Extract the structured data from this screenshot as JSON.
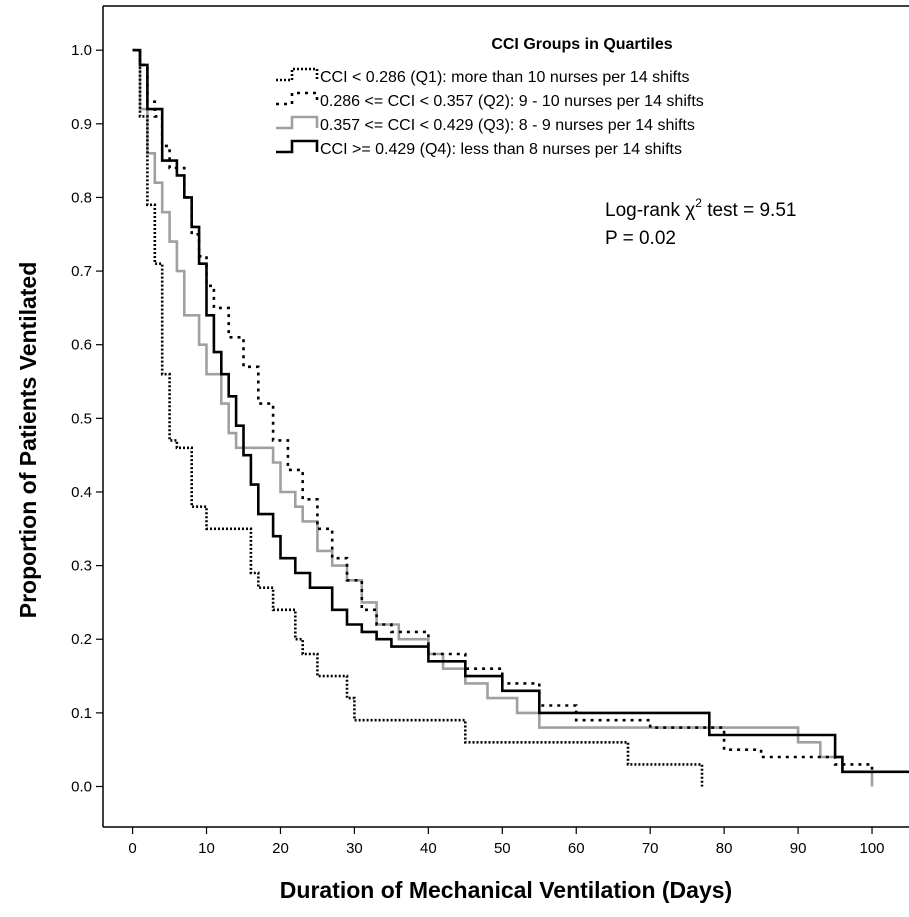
{
  "chart_data": {
    "type": "line",
    "step": true,
    "xlabel": "Duration of Mechanical Ventilation (Days)",
    "ylabel": "Proportion of Patients Ventilated",
    "xlim": [
      -4,
      105
    ],
    "ylim": [
      -0.055,
      1.06
    ],
    "xticks": [
      "0",
      "10",
      "20",
      "30",
      "40",
      "50",
      "60",
      "70",
      "80",
      "90",
      "100"
    ],
    "yticks": [
      "0.0",
      "0.1",
      "0.2",
      "0.3",
      "0.4",
      "0.5",
      "0.6",
      "0.7",
      "0.8",
      "0.9",
      "1.0"
    ],
    "grid": false,
    "legend": {
      "title": "CCI Groups in Quartiles",
      "position": "top-right"
    },
    "annotation": {
      "line1_prefix": "Log-rank χ",
      "line1_sup": "2",
      "line1_suffix": " test = 9.51",
      "line2": "P = 0.02"
    },
    "series": [
      {
        "name": "CCI < 0.286 (Q1): more than 10 nurses per 14 shifts",
        "color": "#000000",
        "dash": "dotted",
        "x": [
          0,
          1,
          2,
          3,
          4,
          5,
          6,
          8,
          10,
          13,
          16,
          17,
          19,
          22,
          23,
          25,
          29,
          30,
          32,
          45,
          67,
          71,
          77
        ],
        "y": [
          1.0,
          0.91,
          0.79,
          0.71,
          0.56,
          0.47,
          0.46,
          0.38,
          0.35,
          0.35,
          0.29,
          0.27,
          0.24,
          0.2,
          0.18,
          0.15,
          0.12,
          0.09,
          0.09,
          0.06,
          0.03,
          0.03,
          0.0
        ]
      },
      {
        "name": "0.286 <= CCI < 0.357 (Q2): 9 - 10 nurses per 14 shifts",
        "color": "#000000",
        "dash": "dashed",
        "x": [
          0,
          1,
          2,
          3,
          4,
          5,
          7,
          8,
          9,
          10,
          11,
          13,
          15,
          17,
          19,
          21,
          23,
          25,
          27,
          29,
          31,
          33,
          35,
          40,
          45,
          50,
          55,
          60,
          70,
          80,
          85,
          95,
          100
        ],
        "y": [
          1.0,
          0.98,
          0.93,
          0.91,
          0.87,
          0.84,
          0.8,
          0.75,
          0.72,
          0.68,
          0.65,
          0.61,
          0.57,
          0.52,
          0.47,
          0.43,
          0.39,
          0.35,
          0.31,
          0.28,
          0.24,
          0.22,
          0.21,
          0.18,
          0.16,
          0.14,
          0.11,
          0.09,
          0.08,
          0.05,
          0.04,
          0.03,
          0.02
        ]
      },
      {
        "name": "0.357 <= CCI < 0.429 (Q3): 8 - 9 nurses per 14 shifts",
        "color": "#a0a0a0",
        "dash": "solid",
        "x": [
          0,
          1,
          2,
          3,
          4,
          5,
          6,
          7,
          8,
          9,
          10,
          12,
          13,
          14,
          16,
          17,
          19,
          20,
          22,
          23,
          25,
          27,
          29,
          31,
          33,
          36,
          40,
          42,
          45,
          48,
          52,
          55,
          57,
          60,
          63,
          66,
          78,
          88,
          90,
          93,
          96,
          100
        ],
        "y": [
          1.0,
          0.92,
          0.86,
          0.82,
          0.78,
          0.74,
          0.7,
          0.64,
          0.64,
          0.6,
          0.56,
          0.52,
          0.48,
          0.46,
          0.46,
          0.46,
          0.44,
          0.4,
          0.38,
          0.36,
          0.32,
          0.3,
          0.28,
          0.25,
          0.22,
          0.2,
          0.18,
          0.16,
          0.14,
          0.12,
          0.1,
          0.08,
          0.08,
          0.08,
          0.08,
          0.08,
          0.08,
          0.08,
          0.06,
          0.04,
          0.02,
          0.0
        ]
      },
      {
        "name": "CCI >= 0.429 (Q4): less than 8 nurses per 14 shifts",
        "color": "#000000",
        "dash": "solid",
        "x": [
          0,
          1,
          2,
          4,
          6,
          7,
          8,
          9,
          10,
          11,
          12,
          13,
          14,
          15,
          16,
          17,
          19,
          20,
          22,
          24,
          27,
          29,
          31,
          33,
          35,
          40,
          45,
          50,
          55,
          57,
          60,
          78,
          95,
          96,
          100,
          105
        ],
        "y": [
          1.0,
          0.98,
          0.92,
          0.85,
          0.83,
          0.8,
          0.76,
          0.71,
          0.64,
          0.59,
          0.56,
          0.53,
          0.49,
          0.45,
          0.41,
          0.37,
          0.34,
          0.31,
          0.29,
          0.27,
          0.24,
          0.22,
          0.21,
          0.2,
          0.19,
          0.17,
          0.15,
          0.13,
          0.1,
          0.1,
          0.1,
          0.07,
          0.04,
          0.02,
          0.02,
          0.02
        ]
      }
    ]
  }
}
